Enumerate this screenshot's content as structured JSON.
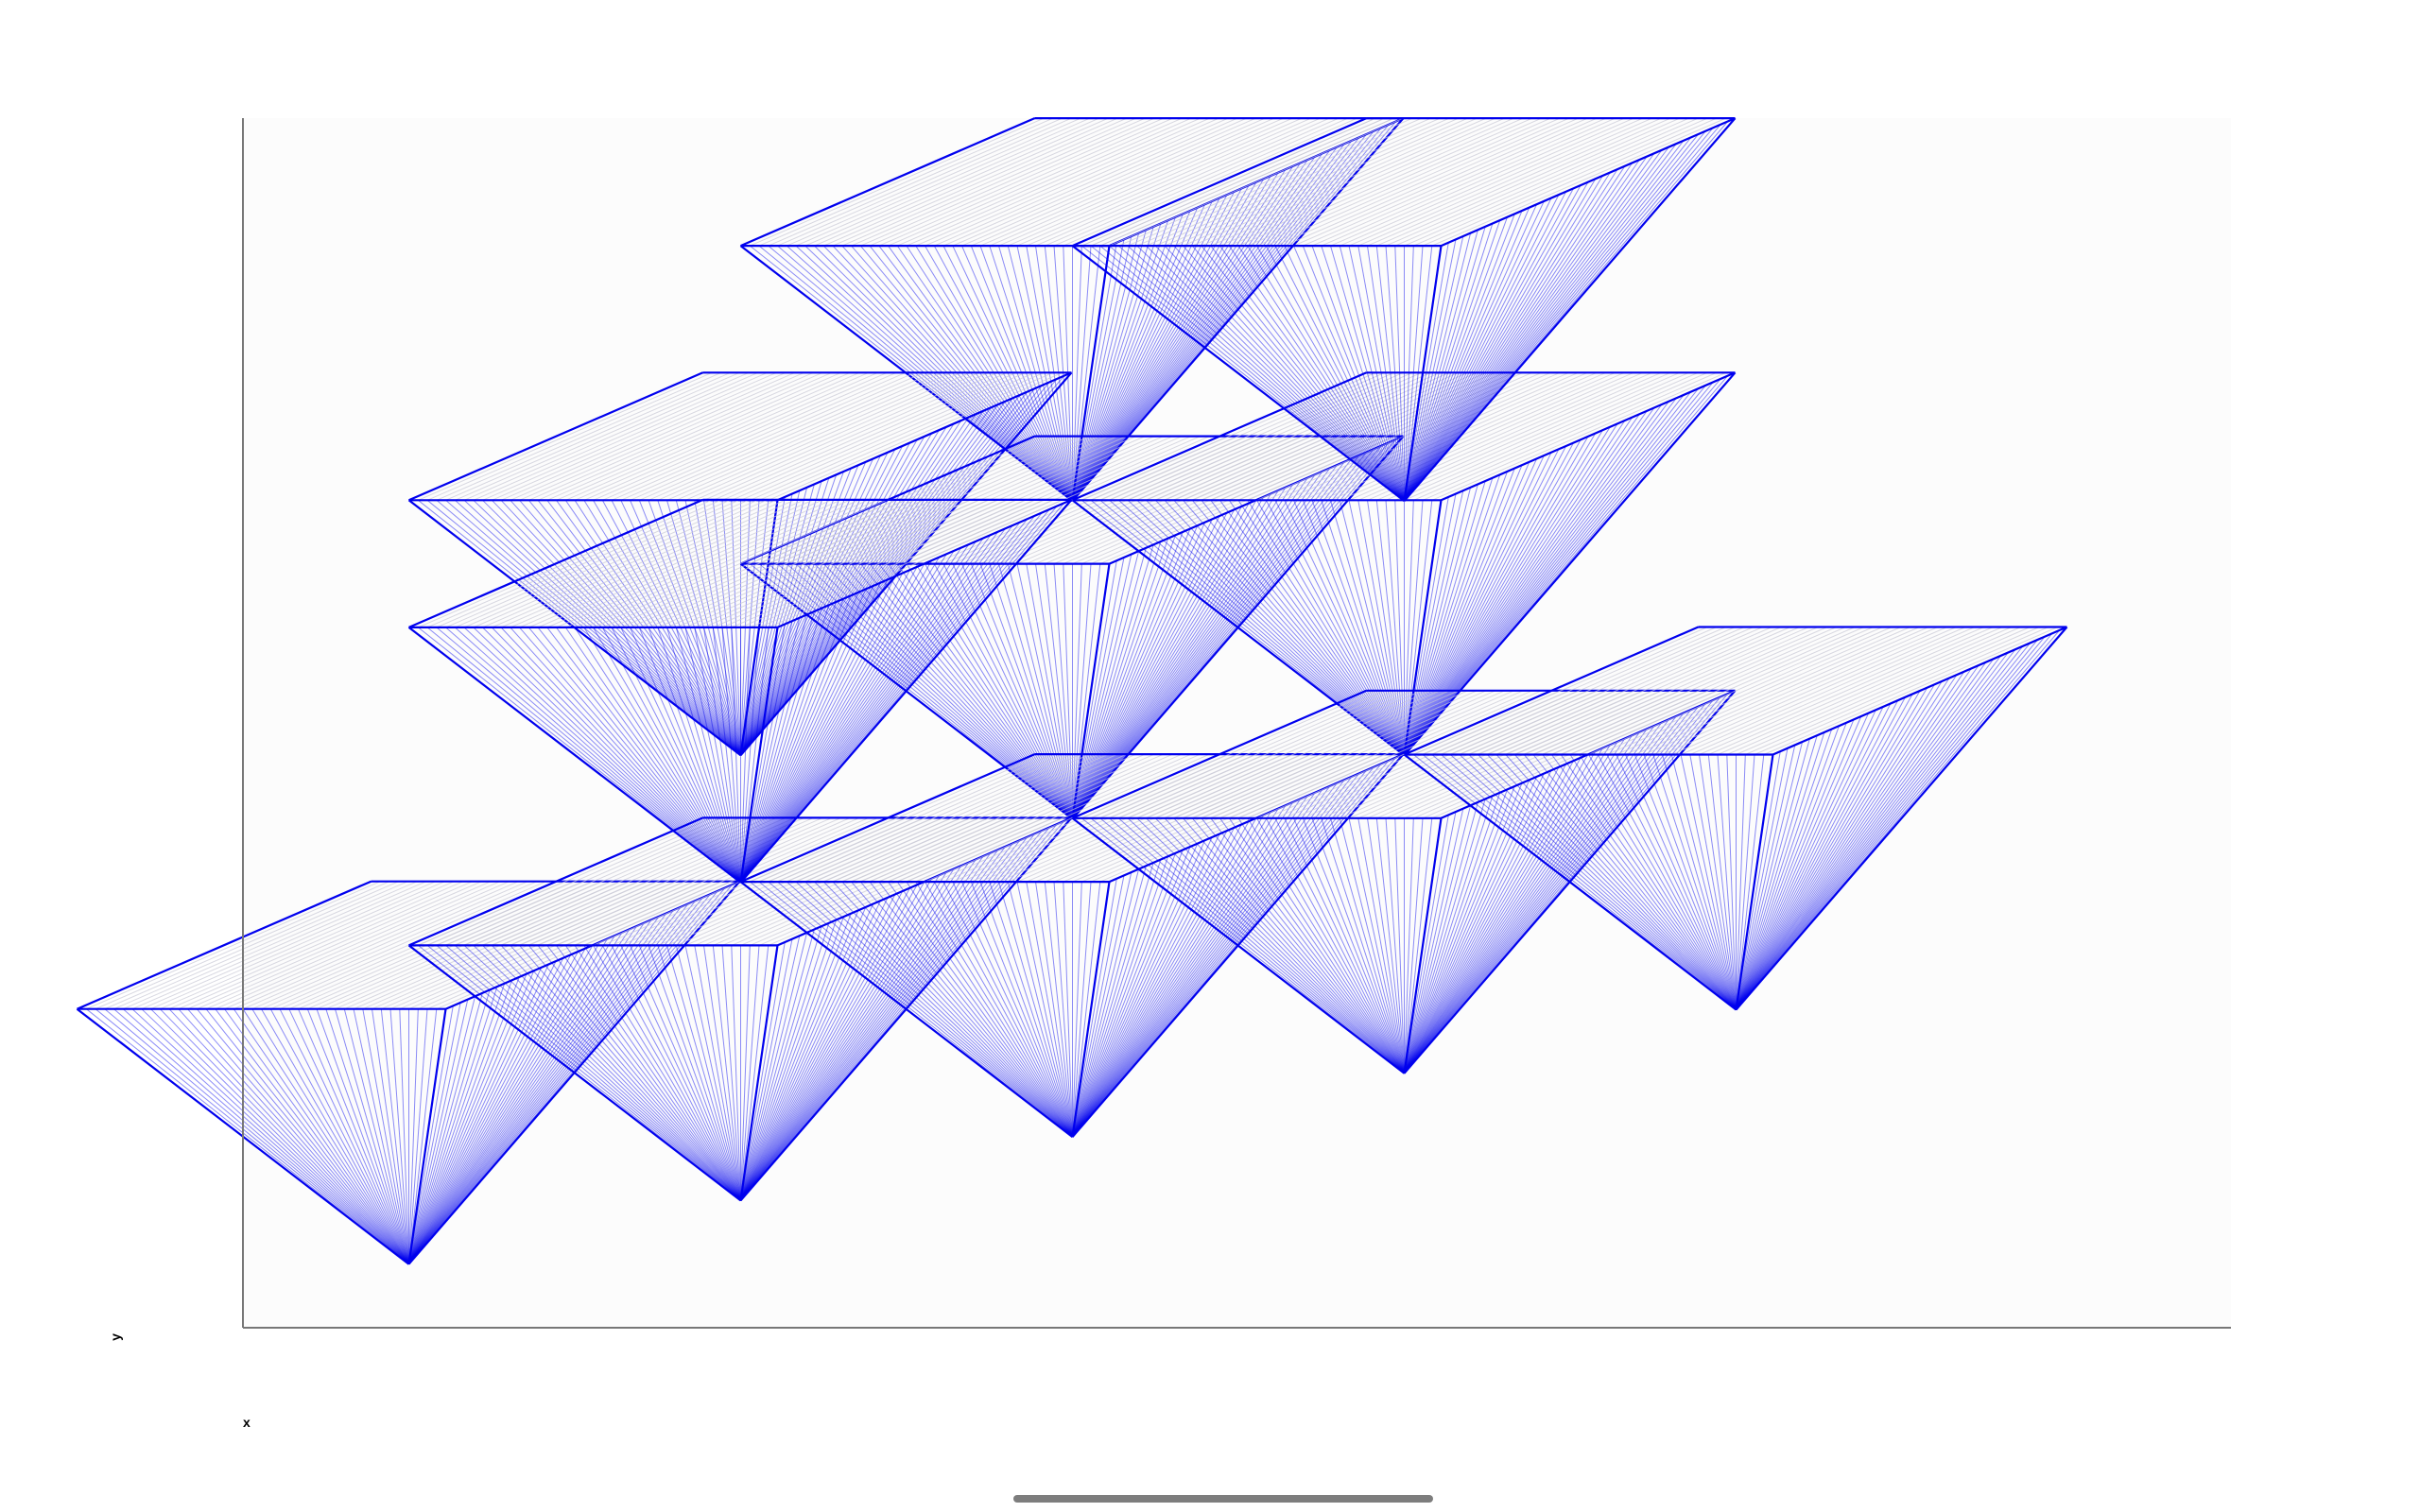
{
  "app": {
    "title": ""
  },
  "plot": {
    "x_label": "x",
    "y_label": "y",
    "background": "#fcfcfc",
    "axis_color": "#777777",
    "stroke_color": "#0000ee",
    "fill_line_color": "#c8c8d4",
    "pyramid_count": 11
  },
  "chart_data": {
    "type": "scatter",
    "title": "",
    "xlabel": "x",
    "ylabel": "y",
    "grid": false,
    "legend": "none",
    "pyramids": [
      {
        "apex": [
          5.0,
          13.0
        ]
      },
      {
        "apex": [
          3.0,
          9.0
        ]
      },
      {
        "apex": [
          5.0,
          8.0
        ]
      },
      {
        "apex": [
          7.0,
          9.0
        ]
      },
      {
        "apex": [
          1.0,
          1.0
        ]
      },
      {
        "apex": [
          3.0,
          2.0
        ]
      },
      {
        "apex": [
          5.0,
          3.0
        ]
      },
      {
        "apex": [
          7.0,
          4.0
        ]
      },
      {
        "apex": [
          9.0,
          5.0
        ]
      },
      {
        "apex": [
          3.0,
          7.0
        ]
      },
      {
        "apex": [
          7.0,
          13.0
        ]
      }
    ]
  },
  "system": {
    "home_indicator": "home-indicator"
  }
}
